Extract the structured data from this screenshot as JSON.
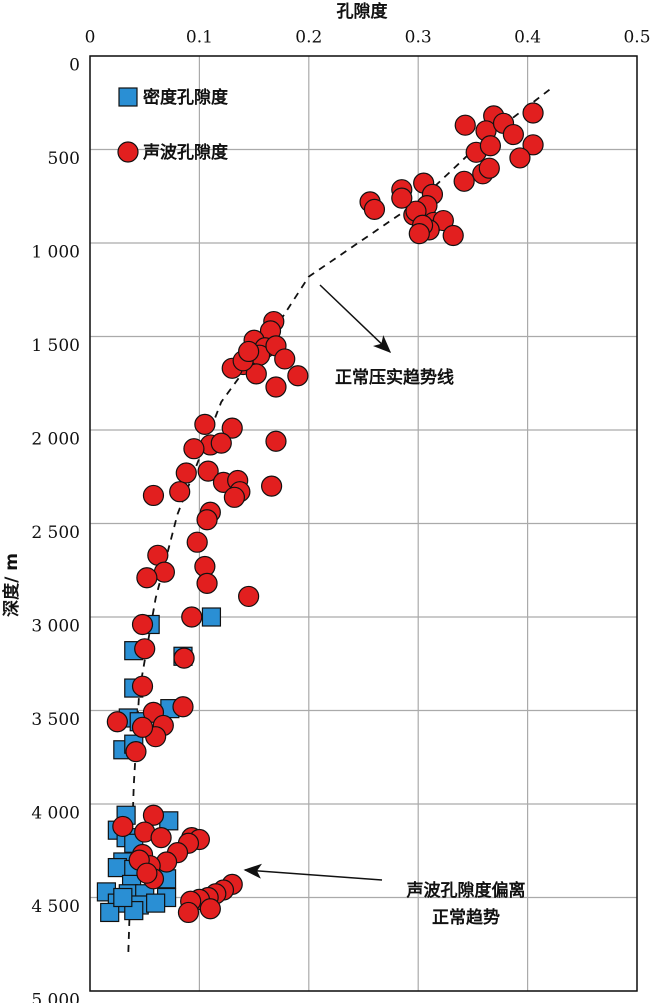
{
  "chart_data": {
    "type": "scatter",
    "title": "孔隙度",
    "y_label": "深度/ m",
    "xlim": [
      0,
      0.5
    ],
    "xticks": [
      0,
      0.1,
      0.2,
      0.3,
      0.4,
      0.5
    ],
    "ylim": [
      0,
      5000
    ],
    "y_inverted": true,
    "yticks": [
      0,
      500,
      {
        "value": 1000,
        "label": "1 000"
      },
      {
        "value": 1500,
        "label": "1 500"
      },
      {
        "value": 2000,
        "label": "2 000"
      },
      {
        "value": 2500,
        "label": "2 500"
      },
      {
        "value": 3000,
        "label": "3 000"
      },
      {
        "value": 3500,
        "label": "3 500"
      },
      {
        "value": 4000,
        "label": "4 000"
      },
      {
        "value": 4500,
        "label": "4 500"
      },
      {
        "value": 5000,
        "label": "5 000"
      }
    ],
    "grid": true,
    "legend": "upper left",
    "series": [
      {
        "name": "密度孔隙度",
        "color": "#2a8fd4",
        "marker": "square",
        "x": [
          0.111,
          0.055,
          0.04,
          0.085,
          0.04,
          0.073,
          0.035,
          0.045,
          0.03,
          0.04,
          0.033,
          0.072,
          0.025,
          0.033,
          0.04,
          0.03,
          0.025,
          0.04,
          0.07,
          0.038,
          0.015,
          0.035,
          0.05,
          0.07,
          0.025,
          0.045,
          0.06,
          0.018,
          0.04,
          0.03
        ],
        "values": [
          3000,
          3040,
          3180,
          3210,
          3380,
          3490,
          3540,
          3560,
          3710,
          3680,
          4060,
          4090,
          4140,
          4180,
          4210,
          4310,
          4340,
          4350,
          4400,
          4430,
          4470,
          4480,
          4480,
          4500,
          4530,
          4540,
          4530,
          4580,
          4570,
          4500
        ]
      },
      {
        "name": "声波孔隙度",
        "color": "#e21f1f",
        "marker": "circle",
        "x": [
          0.343,
          0.369,
          0.405,
          0.362,
          0.378,
          0.387,
          0.353,
          0.366,
          0.405,
          0.393,
          0.359,
          0.342,
          0.365,
          0.305,
          0.285,
          0.313,
          0.296,
          0.308,
          0.314,
          0.323,
          0.31,
          0.298,
          0.285,
          0.256,
          0.26,
          0.332,
          0.304,
          0.301,
          0.168,
          0.165,
          0.15,
          0.16,
          0.155,
          0.17,
          0.14,
          0.13,
          0.152,
          0.178,
          0.17,
          0.19,
          0.14,
          0.145,
          0.105,
          0.13,
          0.11,
          0.12,
          0.095,
          0.108,
          0.088,
          0.082,
          0.122,
          0.135,
          0.137,
          0.132,
          0.166,
          0.058,
          0.11,
          0.107,
          0.17,
          0.098,
          0.062,
          0.068,
          0.105,
          0.107,
          0.052,
          0.145,
          0.093,
          0.048,
          0.05,
          0.086,
          0.048,
          0.085,
          0.058,
          0.067,
          0.06,
          0.048,
          0.025,
          0.042,
          0.058,
          0.03,
          0.05,
          0.065,
          0.093,
          0.1,
          0.09,
          0.08,
          0.048,
          0.07,
          0.055,
          0.045,
          0.058,
          0.052,
          0.13,
          0.122,
          0.115,
          0.108,
          0.1,
          0.092,
          0.11,
          0.09
        ],
        "values": [
          370,
          320,
          305,
          400,
          360,
          420,
          515,
          480,
          475,
          545,
          630,
          670,
          600,
          680,
          715,
          740,
          850,
          800,
          890,
          880,
          930,
          830,
          760,
          780,
          820,
          960,
          905,
          950,
          1420,
          1470,
          1520,
          1560,
          1600,
          1550,
          1650,
          1670,
          1700,
          1620,
          1770,
          1710,
          1630,
          1580,
          1970,
          1990,
          2080,
          2070,
          2100,
          2220,
          2230,
          2330,
          2280,
          2270,
          2330,
          2360,
          2300,
          2350,
          2440,
          2480,
          2060,
          2600,
          2670,
          2760,
          2730,
          2820,
          2790,
          2890,
          3000,
          3040,
          3170,
          3220,
          3370,
          3480,
          3510,
          3580,
          3640,
          3590,
          3560,
          3720,
          4060,
          4120,
          4150,
          4180,
          4180,
          4190,
          4210,
          4260,
          4270,
          4310,
          4330,
          4300,
          4400,
          4370,
          4430,
          4460,
          4480,
          4500,
          4510,
          4520,
          4560,
          4580
        ]
      }
    ],
    "trend_line": {
      "x": [
        0.42,
        0.36,
        0.3,
        0.25,
        0.2,
        0.17,
        0.12,
        0.08,
        0.06,
        0.045,
        0.04,
        0.035
      ],
      "values": [
        180,
        450,
        780,
        980,
        1180,
        1450,
        1850,
        2450,
        2900,
        3400,
        3900,
        4800
      ]
    },
    "annotations": [
      {
        "lines": [
          "正常压实趋势线"
        ]
      },
      {
        "lines": [
          "声波孔隙度偏离",
          "正常趋势"
        ]
      }
    ]
  }
}
